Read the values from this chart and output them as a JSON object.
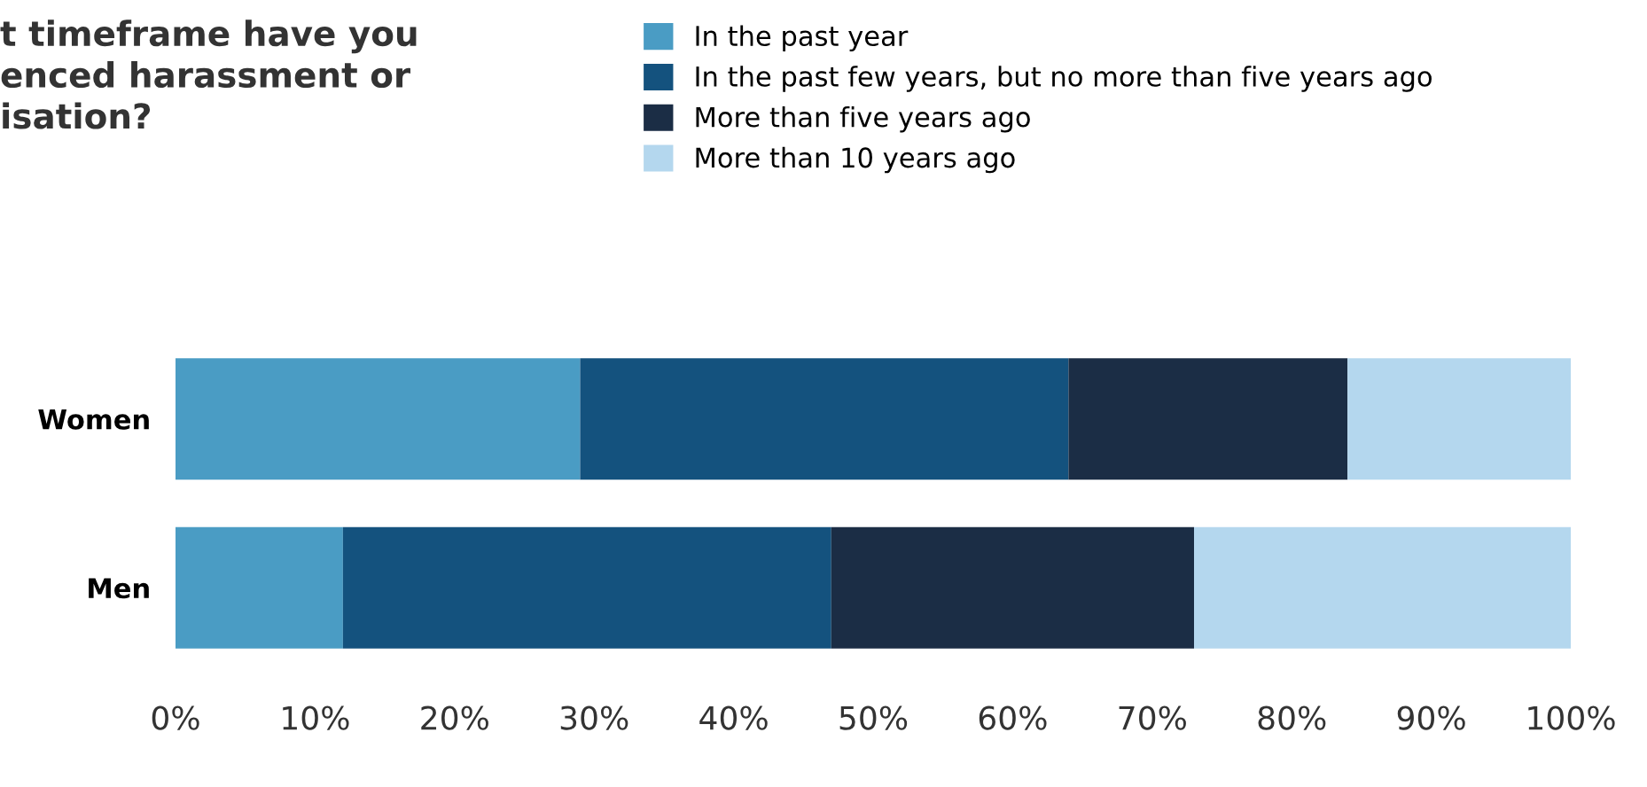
{
  "chart_data": {
    "type": "bar",
    "orientation": "horizontal",
    "stacked": true,
    "title": "t timeframe have you\nenced harassment or\nisation?",
    "categories": [
      "Women",
      "Men"
    ],
    "series": [
      {
        "name": "In the past year",
        "color": "#4a9cc4",
        "values": [
          29,
          12
        ]
      },
      {
        "name": "In the past few years, but no more than five years ago",
        "color": "#14527e",
        "values": [
          35,
          35
        ]
      },
      {
        "name": "More than five years ago",
        "color": "#1b2d45",
        "values": [
          20,
          26
        ]
      },
      {
        "name": "More than 10 years ago",
        "color": "#b4d7ee",
        "values": [
          16,
          27
        ]
      }
    ],
    "xlim": [
      0,
      100
    ],
    "xticks": [
      {
        "value": 0,
        "label": "0%"
      },
      {
        "value": 10,
        "label": "10%"
      },
      {
        "value": 20,
        "label": "20%"
      },
      {
        "value": 30,
        "label": "30%"
      },
      {
        "value": 40,
        "label": "40%"
      },
      {
        "value": 50,
        "label": "50%"
      },
      {
        "value": 60,
        "label": "60%"
      },
      {
        "value": 70,
        "label": "70%"
      },
      {
        "value": 80,
        "label": "80%"
      },
      {
        "value": 90,
        "label": "90%"
      },
      {
        "value": 100,
        "label": "100%"
      }
    ],
    "grid": false,
    "legend": "top"
  }
}
